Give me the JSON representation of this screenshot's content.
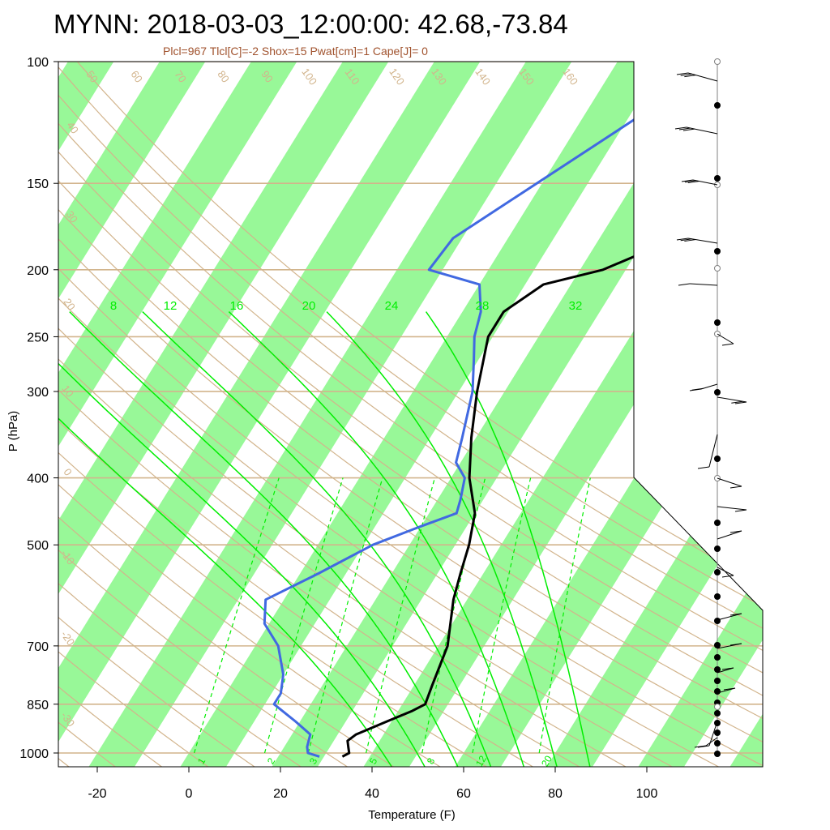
{
  "title": "MYNN: 2018-03-03_12:00:00: 42.68,-73.84",
  "subtitle": "Plcl=967 Tlcl[C]=-2 Shox=15 Pwat[cm]=1 Cape[J]= 0",
  "colors": {
    "temperature": "#000000",
    "dewpoint": "#4169e1",
    "band": "#98f898",
    "isotherm_grid": "#d2b48c",
    "mixing_ratio": "#00ee00"
  },
  "chart_data": {
    "type": "line",
    "title": "MYNN: 2018-03-03_12:00:00: 42.68,-73.84",
    "xlabel": "Temperature (F)",
    "ylabel": "P (hPa)",
    "x_ticks": [
      "-20",
      "0",
      "20",
      "40",
      "60",
      "80",
      "100"
    ],
    "x_tick_values": [
      -20,
      0,
      20,
      40,
      60,
      80,
      100
    ],
    "xlim": [
      -28,
      105
    ],
    "y_ticks": [
      "100",
      "150",
      "200",
      "250",
      "300",
      "400",
      "500",
      "700",
      "850",
      "1000"
    ],
    "y_tick_values": [
      100,
      150,
      200,
      250,
      300,
      400,
      500,
      700,
      850,
      1000
    ],
    "ylim": [
      1050,
      100
    ],
    "y_scale": "log",
    "grid": true,
    "isobars": [
      100,
      150,
      200,
      250,
      300,
      400,
      500,
      700,
      850,
      1000
    ],
    "skewed_isotherm_labels": [
      "-30",
      "-20",
      "-10",
      "0",
      "10",
      "20",
      "30"
    ],
    "dry_adiabat_labels": [
      "-30",
      "-20",
      "-10",
      "0",
      "10",
      "20",
      "30",
      "40",
      "50",
      "60",
      "70",
      "80",
      "90",
      "100",
      "110",
      "120",
      "130",
      "140",
      "150",
      "160"
    ],
    "saturated_adiabat_labels": [
      "8",
      "12",
      "16",
      "20",
      "24",
      "28",
      "32"
    ],
    "mixing_ratio_labels": [
      "1",
      "2",
      "3",
      "5",
      "8",
      "12",
      "20"
    ],
    "series": [
      {
        "name": "",
        "color": "#000000",
        "p": [
          1012,
          1000,
          980,
          960,
          940,
          900,
          870,
          850,
          800,
          700,
          600,
          550,
          500,
          450,
          400,
          350,
          300,
          250,
          230,
          210,
          200,
          180,
          160,
          145,
          125,
          100
        ],
        "t": [
          34,
          35,
          34,
          33,
          34,
          39,
          43,
          45,
          44,
          42,
          37,
          35,
          33,
          30,
          24,
          19,
          14,
          9,
          9,
          14,
          25,
          37,
          49,
          57,
          63,
          72
        ]
      },
      {
        "name": "",
        "color": "#4169e1",
        "p": [
          1012,
          1000,
          980,
          940,
          900,
          850,
          820,
          770,
          700,
          650,
          600,
          550,
          500,
          470,
          450,
          430,
          400,
          380,
          350,
          300,
          270,
          250,
          230,
          210,
          200,
          180,
          100
        ],
        "t": [
          29,
          26,
          25,
          24,
          19,
          12,
          12,
          10,
          5,
          -1,
          -4,
          4,
          12,
          20,
          26,
          25,
          23,
          19,
          17,
          13,
          9,
          6,
          4,
          0,
          -13,
          -12,
          23
        ]
      }
    ],
    "wind_profile_levels": [
      100,
      150,
      200,
      250,
      300,
      400,
      500,
      700,
      850,
      1000
    ]
  }
}
